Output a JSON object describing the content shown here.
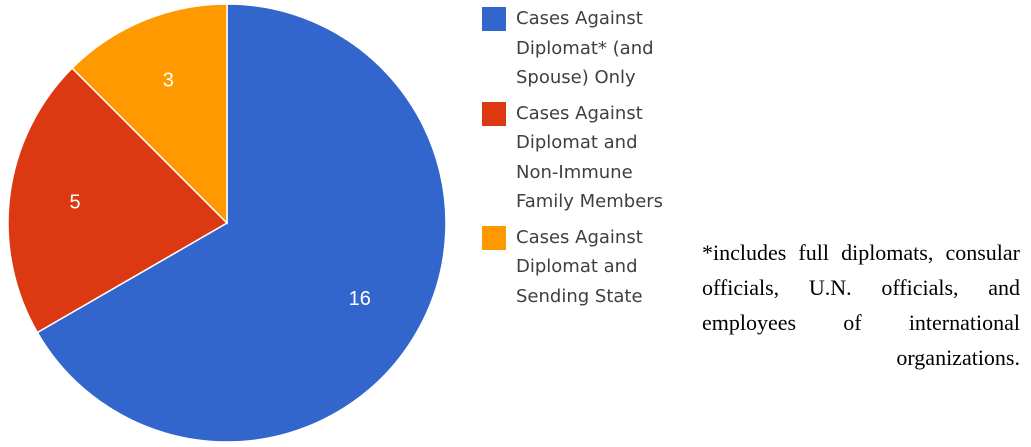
{
  "chart_data": {
    "type": "pie",
    "title": "",
    "start_angle_deg": 0,
    "direction": "clockwise",
    "slices": [
      {
        "label": "Cases Against\nDiplomat* (and\nSpouse) Only",
        "value": 16,
        "color": "#3366cc"
      },
      {
        "label": "Cases Against\nDiplomat and\nNon-Immune\nFamily Members",
        "value": 5,
        "color": "#dc3912"
      },
      {
        "label": "Cases Against\nDiplomat and\nSending State",
        "value": 3,
        "color": "#ff9900"
      }
    ],
    "data_labels": true,
    "legend": "right"
  },
  "footnote": "*includes full diplomats, consular officials, U.N. officials, and employees of international organizations."
}
